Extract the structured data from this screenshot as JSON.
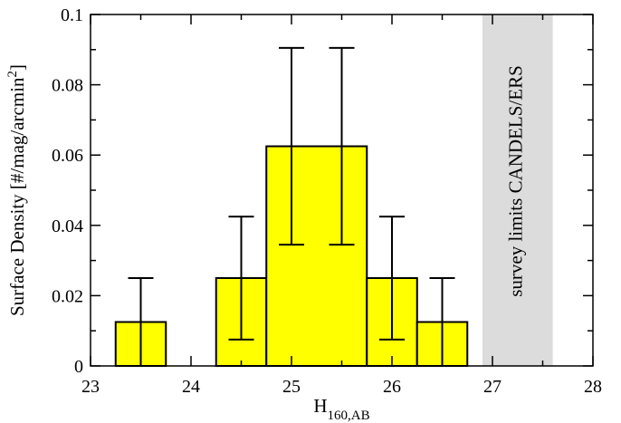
{
  "chart_data": {
    "type": "bar",
    "title": "",
    "xlabel": "H",
    "xlabel_subscript": "160,AB",
    "ylabel": "Surface Density [#/mag/arcmin",
    "ylabel_superscript": "2",
    "ylabel_suffix": "]",
    "xlim": [
      23,
      28
    ],
    "ylim": [
      0,
      0.1
    ],
    "xticks": [
      "23",
      "24",
      "25",
      "26",
      "27",
      "28"
    ],
    "yticks": [
      "0",
      "0.02",
      "0.04",
      "0.06",
      "0.08",
      "0.1"
    ],
    "grid": false,
    "bar_color": "#ffff00",
    "shade_color": "#dcdcdc",
    "bins": [
      {
        "x0": 23.25,
        "x1": 23.75,
        "value": 0.0125
      },
      {
        "x0": 24.25,
        "x1": 24.75,
        "value": 0.025
      },
      {
        "x0": 24.75,
        "x1": 25.75,
        "value": 0.0625
      },
      {
        "x0": 25.75,
        "x1": 26.25,
        "value": 0.025
      },
      {
        "x0": 26.25,
        "x1": 26.75,
        "value": 0.0125
      }
    ],
    "error_bars": [
      {
        "x": 23.5,
        "low": 0.0,
        "high": 0.025
      },
      {
        "x": 24.5,
        "low": 0.0075,
        "high": 0.0425
      },
      {
        "x": 25.0,
        "low": 0.0345,
        "high": 0.0905
      },
      {
        "x": 25.5,
        "low": 0.0345,
        "high": 0.0905
      },
      {
        "x": 26.0,
        "low": 0.0075,
        "high": 0.0425
      },
      {
        "x": 26.5,
        "low": 0.0,
        "high": 0.025
      }
    ],
    "shaded_region": {
      "x0": 26.9,
      "x1": 27.6,
      "label": "survey limits CANDELS/ERS"
    }
  }
}
